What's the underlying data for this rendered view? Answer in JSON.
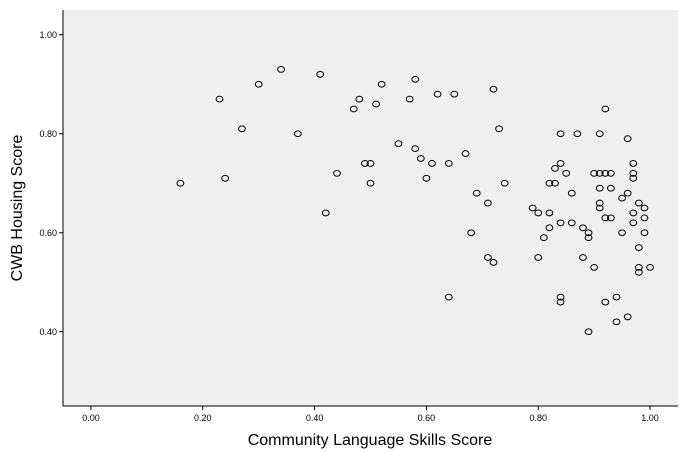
{
  "chart_data": {
    "type": "scatter",
    "title": "",
    "xlabel": "Community Language Skills Score",
    "ylabel": "CWB Housing Score",
    "xlim": [
      -0.05,
      1.05
    ],
    "ylim": [
      0.25,
      1.05
    ],
    "x_ticks": [
      "0.00",
      "0.20",
      "0.40",
      "0.60",
      "0.80",
      "1.00"
    ],
    "y_ticks": [
      "0.40",
      "0.60",
      "0.80",
      "1.00"
    ],
    "grid": false,
    "legend": "none",
    "colors": {
      "plot_background": "#efefef",
      "marker_stroke": "#000000"
    },
    "points": [
      [
        0.16,
        0.7
      ],
      [
        0.23,
        0.87
      ],
      [
        0.24,
        0.71
      ],
      [
        0.27,
        0.81
      ],
      [
        0.3,
        0.9
      ],
      [
        0.34,
        0.93
      ],
      [
        0.37,
        0.8
      ],
      [
        0.41,
        0.92
      ],
      [
        0.42,
        0.64
      ],
      [
        0.44,
        0.72
      ],
      [
        0.47,
        0.85
      ],
      [
        0.48,
        0.87
      ],
      [
        0.49,
        0.74
      ],
      [
        0.5,
        0.74
      ],
      [
        0.5,
        0.7
      ],
      [
        0.51,
        0.86
      ],
      [
        0.52,
        0.9
      ],
      [
        0.55,
        0.78
      ],
      [
        0.57,
        0.87
      ],
      [
        0.58,
        0.77
      ],
      [
        0.58,
        0.91
      ],
      [
        0.59,
        0.75
      ],
      [
        0.6,
        0.71
      ],
      [
        0.61,
        0.74
      ],
      [
        0.62,
        0.88
      ],
      [
        0.64,
        0.74
      ],
      [
        0.64,
        0.47
      ],
      [
        0.65,
        0.88
      ],
      [
        0.67,
        0.76
      ],
      [
        0.68,
        0.6
      ],
      [
        0.69,
        0.68
      ],
      [
        0.71,
        0.66
      ],
      [
        0.71,
        0.55
      ],
      [
        0.72,
        0.54
      ],
      [
        0.72,
        0.89
      ],
      [
        0.73,
        0.81
      ],
      [
        0.74,
        0.7
      ],
      [
        0.79,
        0.65
      ],
      [
        0.8,
        0.64
      ],
      [
        0.8,
        0.55
      ],
      [
        0.81,
        0.59
      ],
      [
        0.82,
        0.7
      ],
      [
        0.82,
        0.64
      ],
      [
        0.82,
        0.61
      ],
      [
        0.83,
        0.7
      ],
      [
        0.83,
        0.73
      ],
      [
        0.84,
        0.8
      ],
      [
        0.84,
        0.62
      ],
      [
        0.84,
        0.74
      ],
      [
        0.84,
        0.47
      ],
      [
        0.84,
        0.46
      ],
      [
        0.85,
        0.72
      ],
      [
        0.86,
        0.68
      ],
      [
        0.86,
        0.62
      ],
      [
        0.87,
        0.8
      ],
      [
        0.88,
        0.55
      ],
      [
        0.88,
        0.61
      ],
      [
        0.89,
        0.6
      ],
      [
        0.89,
        0.59
      ],
      [
        0.89,
        0.4
      ],
      [
        0.9,
        0.72
      ],
      [
        0.9,
        0.53
      ],
      [
        0.91,
        0.8
      ],
      [
        0.91,
        0.72
      ],
      [
        0.91,
        0.69
      ],
      [
        0.91,
        0.66
      ],
      [
        0.91,
        0.65
      ],
      [
        0.92,
        0.72
      ],
      [
        0.92,
        0.63
      ],
      [
        0.92,
        0.46
      ],
      [
        0.92,
        0.85
      ],
      [
        0.93,
        0.72
      ],
      [
        0.93,
        0.69
      ],
      [
        0.93,
        0.63
      ],
      [
        0.94,
        0.42
      ],
      [
        0.94,
        0.47
      ],
      [
        0.95,
        0.6
      ],
      [
        0.95,
        0.67
      ],
      [
        0.96,
        0.68
      ],
      [
        0.96,
        0.79
      ],
      [
        0.96,
        0.43
      ],
      [
        0.97,
        0.72
      ],
      [
        0.97,
        0.74
      ],
      [
        0.97,
        0.71
      ],
      [
        0.97,
        0.64
      ],
      [
        0.97,
        0.62
      ],
      [
        0.98,
        0.53
      ],
      [
        0.98,
        0.52
      ],
      [
        0.98,
        0.57
      ],
      [
        0.98,
        0.66
      ],
      [
        0.99,
        0.63
      ],
      [
        0.99,
        0.65
      ],
      [
        0.99,
        0.6
      ],
      [
        1.0,
        0.53
      ]
    ]
  }
}
